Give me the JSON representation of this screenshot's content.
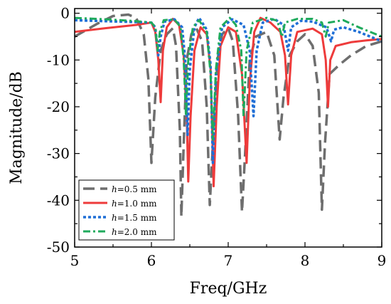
{
  "chart_data": {
    "type": "line",
    "xlabel": "Freq/GHz",
    "ylabel": "Magnitude/dB",
    "xlim": [
      5,
      9
    ],
    "ylim": [
      -50,
      1
    ],
    "xticks": [
      "5",
      "6",
      "7",
      "8",
      "9"
    ],
    "yticks": [
      "0",
      "-10",
      "-20",
      "-30",
      "-40",
      "-50"
    ],
    "grid": false,
    "legend_position": "bottom-left",
    "series": [
      {
        "name": "h=0.5 mm",
        "name_italic": "h",
        "name_rest": "=0.5 mm",
        "color": "#6e6e6e",
        "dash": "long-dash",
        "points": [
          [
            5.0,
            -5.0
          ],
          [
            5.3,
            -2.2
          ],
          [
            5.5,
            -0.6
          ],
          [
            5.7,
            -0.3
          ],
          [
            5.8,
            -1.0
          ],
          [
            5.9,
            -4.5
          ],
          [
            5.96,
            -14.0
          ],
          [
            6.0,
            -32.0
          ],
          [
            6.05,
            -18.0
          ],
          [
            6.12,
            -8.0
          ],
          [
            6.2,
            -4.5
          ],
          [
            6.28,
            -3.2
          ],
          [
            6.32,
            -7.0
          ],
          [
            6.37,
            -25.0
          ],
          [
            6.39,
            -43.5
          ],
          [
            6.42,
            -28.0
          ],
          [
            6.46,
            -10.0
          ],
          [
            6.52,
            -4.5
          ],
          [
            6.58,
            -3.0
          ],
          [
            6.66,
            -6.0
          ],
          [
            6.72,
            -20.0
          ],
          [
            6.76,
            -41.0
          ],
          [
            6.8,
            -28.0
          ],
          [
            6.86,
            -10.0
          ],
          [
            6.92,
            -4.5
          ],
          [
            7.0,
            -3.2
          ],
          [
            7.06,
            -6.0
          ],
          [
            7.13,
            -22.0
          ],
          [
            7.18,
            -42.5
          ],
          [
            7.22,
            -30.0
          ],
          [
            7.28,
            -10.0
          ],
          [
            7.36,
            -5.0
          ],
          [
            7.5,
            -4.0
          ],
          [
            7.6,
            -9.0
          ],
          [
            7.67,
            -27.0
          ],
          [
            7.72,
            -18.0
          ],
          [
            7.8,
            -9.0
          ],
          [
            7.9,
            -6.0
          ],
          [
            8.0,
            -4.5
          ],
          [
            8.1,
            -7.0
          ],
          [
            8.18,
            -17.0
          ],
          [
            8.22,
            -42.0
          ],
          [
            8.26,
            -28.0
          ],
          [
            8.32,
            -13.0
          ],
          [
            8.45,
            -11.0
          ],
          [
            8.6,
            -9.0
          ],
          [
            8.8,
            -7.0
          ],
          [
            9.0,
            -6.0
          ]
        ]
      },
      {
        "name": "h=1.0 mm",
        "name_italic": "h",
        "name_rest": "=1.0 mm",
        "color": "#ee3b3b",
        "dash": "solid",
        "points": [
          [
            5.0,
            -4.0
          ],
          [
            5.4,
            -3.2
          ],
          [
            5.8,
            -2.5
          ],
          [
            6.0,
            -2.0
          ],
          [
            6.05,
            -4.0
          ],
          [
            6.09,
            -10.0
          ],
          [
            6.12,
            -19.0
          ],
          [
            6.15,
            -8.0
          ],
          [
            6.2,
            -3.0
          ],
          [
            6.28,
            -1.2
          ],
          [
            6.36,
            -2.5
          ],
          [
            6.42,
            -9.0
          ],
          [
            6.46,
            -22.0
          ],
          [
            6.48,
            -36.0
          ],
          [
            6.51,
            -22.0
          ],
          [
            6.56,
            -8.0
          ],
          [
            6.64,
            -3.0
          ],
          [
            6.72,
            -4.5
          ],
          [
            6.77,
            -12.0
          ],
          [
            6.81,
            -37.0
          ],
          [
            6.85,
            -20.0
          ],
          [
            6.9,
            -7.0
          ],
          [
            7.0,
            -3.0
          ],
          [
            7.1,
            -4.0
          ],
          [
            7.18,
            -13.0
          ],
          [
            7.24,
            -32.0
          ],
          [
            7.28,
            -15.0
          ],
          [
            7.34,
            -4.0
          ],
          [
            7.42,
            -1.0
          ],
          [
            7.55,
            -2.0
          ],
          [
            7.68,
            -4.0
          ],
          [
            7.74,
            -9.0
          ],
          [
            7.78,
            -19.5
          ],
          [
            7.82,
            -9.0
          ],
          [
            7.9,
            -4.0
          ],
          [
            8.1,
            -3.3
          ],
          [
            8.22,
            -4.5
          ],
          [
            8.27,
            -10.0
          ],
          [
            8.3,
            -20.0
          ],
          [
            8.33,
            -10.0
          ],
          [
            8.4,
            -7.0
          ],
          [
            8.6,
            -6.2
          ],
          [
            8.8,
            -5.8
          ],
          [
            9.0,
            -5.5
          ]
        ]
      },
      {
        "name": "h=1.5 mm",
        "name_italic": "h",
        "name_rest": "=1.5 mm",
        "color": "#1f6fd6",
        "dash": "dot",
        "points": [
          [
            5.0,
            -1.5
          ],
          [
            5.4,
            -1.7
          ],
          [
            5.8,
            -1.9
          ],
          [
            6.0,
            -2.0
          ],
          [
            6.05,
            -3.0
          ],
          [
            6.09,
            -9.0
          ],
          [
            6.12,
            -5.0
          ],
          [
            6.17,
            -1.8
          ],
          [
            6.3,
            -1.3
          ],
          [
            6.4,
            -3.0
          ],
          [
            6.44,
            -10.0
          ],
          [
            6.47,
            -26.0
          ],
          [
            6.5,
            -12.0
          ],
          [
            6.56,
            -3.0
          ],
          [
            6.62,
            -1.0
          ],
          [
            6.72,
            -3.5
          ],
          [
            6.77,
            -11.0
          ],
          [
            6.8,
            -32.0
          ],
          [
            6.84,
            -13.0
          ],
          [
            6.92,
            -3.0
          ],
          [
            7.05,
            -1.3
          ],
          [
            7.2,
            -2.5
          ],
          [
            7.28,
            -8.0
          ],
          [
            7.33,
            -22.0
          ],
          [
            7.37,
            -8.0
          ],
          [
            7.45,
            -2.0
          ],
          [
            7.6,
            -1.2
          ],
          [
            7.72,
            -2.5
          ],
          [
            7.78,
            -8.0
          ],
          [
            7.82,
            -3.0
          ],
          [
            7.95,
            -1.6
          ],
          [
            8.1,
            -1.8
          ],
          [
            8.28,
            -3.0
          ],
          [
            8.34,
            -6.0
          ],
          [
            8.38,
            -3.5
          ],
          [
            8.5,
            -3.0
          ],
          [
            8.7,
            -4.0
          ],
          [
            9.0,
            -6.0
          ]
        ]
      },
      {
        "name": "h=2.0 mm",
        "name_italic": "h",
        "name_rest": "=2.0 mm",
        "color": "#1faa5c",
        "dash": "dash-dot",
        "points": [
          [
            5.0,
            -1.0
          ],
          [
            5.4,
            -1.3
          ],
          [
            5.8,
            -1.7
          ],
          [
            6.0,
            -2.0
          ],
          [
            6.05,
            -3.0
          ],
          [
            6.08,
            -8.0
          ],
          [
            6.11,
            -4.0
          ],
          [
            6.16,
            -1.5
          ],
          [
            6.3,
            -1.3
          ],
          [
            6.38,
            -3.0
          ],
          [
            6.42,
            -10.0
          ],
          [
            6.45,
            -22.0
          ],
          [
            6.48,
            -10.0
          ],
          [
            6.54,
            -3.0
          ],
          [
            6.62,
            -1.5
          ],
          [
            6.72,
            -4.0
          ],
          [
            6.77,
            -13.0
          ],
          [
            6.8,
            -27.0
          ],
          [
            6.84,
            -12.0
          ],
          [
            6.9,
            -3.0
          ],
          [
            7.02,
            -1.0
          ],
          [
            7.1,
            -2.5
          ],
          [
            7.17,
            -8.0
          ],
          [
            7.2,
            -22.0
          ],
          [
            7.24,
            -8.0
          ],
          [
            7.32,
            -2.0
          ],
          [
            7.5,
            -1.0
          ],
          [
            7.64,
            -1.6
          ],
          [
            7.7,
            -5.0
          ],
          [
            7.74,
            -2.0
          ],
          [
            7.9,
            -1.2
          ],
          [
            8.1,
            -1.2
          ],
          [
            8.22,
            -2.0
          ],
          [
            8.27,
            -5.0
          ],
          [
            8.31,
            -2.0
          ],
          [
            8.5,
            -1.5
          ],
          [
            8.7,
            -3.0
          ],
          [
            9.0,
            -5.0
          ]
        ]
      }
    ]
  }
}
